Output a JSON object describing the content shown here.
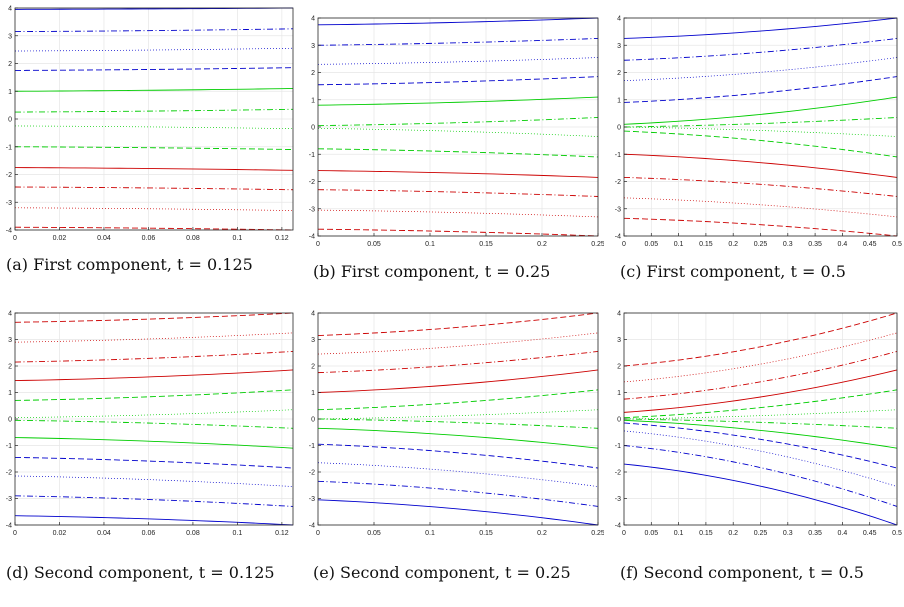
{
  "chart_data": [
    {
      "type": "line",
      "caption": "(a) First component, t = 0.125",
      "t": 0.125,
      "component": "first",
      "xlim": [
        0,
        0.125
      ],
      "ylim": [
        -4,
        4
      ],
      "xticks": [
        "0",
        "0.02",
        "0.04",
        "0.06",
        "0.08",
        "0.1",
        "0.12"
      ],
      "xtick_values": [
        0,
        0.02,
        0.04,
        0.06,
        0.08,
        0.1,
        0.12
      ],
      "yticks": [
        "-4",
        "-3",
        "-2",
        "-1",
        "0",
        "1",
        "2",
        "3",
        "4"
      ],
      "ytick_values": [
        -4,
        -3,
        -2,
        -1,
        0,
        1,
        2,
        3,
        4
      ],
      "grid": true,
      "series": [
        {
          "color": "#0000cc",
          "style": "solid",
          "x": [
            0,
            0.125
          ],
          "y": [
            3.95,
            4.0
          ]
        },
        {
          "color": "#0000cc",
          "style": "dashdot",
          "x": [
            0,
            0.125
          ],
          "y": [
            3.15,
            3.25
          ]
        },
        {
          "color": "#0000cc",
          "style": "dotted",
          "x": [
            0,
            0.125
          ],
          "y": [
            2.45,
            2.55
          ]
        },
        {
          "color": "#0000cc",
          "style": "dashed",
          "x": [
            0,
            0.125
          ],
          "y": [
            1.75,
            1.85
          ]
        },
        {
          "color": "#00cc00",
          "style": "solid",
          "x": [
            0,
            0.125
          ],
          "y": [
            1.0,
            1.1
          ]
        },
        {
          "color": "#00cc00",
          "style": "dashdot",
          "x": [
            0,
            0.125
          ],
          "y": [
            0.25,
            0.35
          ]
        },
        {
          "color": "#00cc00",
          "style": "dotted",
          "x": [
            0,
            0.125
          ],
          "y": [
            -0.25,
            -0.35
          ]
        },
        {
          "color": "#00cc00",
          "style": "dashed",
          "x": [
            0,
            0.125
          ],
          "y": [
            -1.0,
            -1.1
          ]
        },
        {
          "color": "#cc0000",
          "style": "solid",
          "x": [
            0,
            0.125
          ],
          "y": [
            -1.75,
            -1.85
          ]
        },
        {
          "color": "#cc0000",
          "style": "dashdot",
          "x": [
            0,
            0.125
          ],
          "y": [
            -2.45,
            -2.55
          ]
        },
        {
          "color": "#cc0000",
          "style": "dotted",
          "x": [
            0,
            0.125
          ],
          "y": [
            -3.2,
            -3.3
          ]
        },
        {
          "color": "#cc0000",
          "style": "dashed",
          "x": [
            0,
            0.125
          ],
          "y": [
            -3.9,
            -4.0
          ]
        }
      ]
    },
    {
      "type": "line",
      "caption": "(b) First component, t = 0.25",
      "t": 0.25,
      "component": "first",
      "xlim": [
        0,
        0.25
      ],
      "ylim": [
        -4,
        4
      ],
      "xticks": [
        "0",
        "0.05",
        "0.1",
        "0.15",
        "0.2",
        "0.25"
      ],
      "xtick_values": [
        0,
        0.05,
        0.1,
        0.15,
        0.2,
        0.25
      ],
      "yticks": [
        "-4",
        "-3",
        "-2",
        "-1",
        "0",
        "1",
        "2",
        "3",
        "4"
      ],
      "ytick_values": [
        -4,
        -3,
        -2,
        -1,
        0,
        1,
        2,
        3,
        4
      ],
      "grid": true,
      "series": [
        {
          "color": "#0000cc",
          "style": "solid",
          "x": [
            0,
            0.25
          ],
          "y": [
            3.75,
            4.0
          ]
        },
        {
          "color": "#0000cc",
          "style": "dashdot",
          "x": [
            0,
            0.25
          ],
          "y": [
            3.0,
            3.25
          ]
        },
        {
          "color": "#0000cc",
          "style": "dotted",
          "x": [
            0,
            0.25
          ],
          "y": [
            2.3,
            2.55
          ]
        },
        {
          "color": "#0000cc",
          "style": "dashed",
          "x": [
            0,
            0.25
          ],
          "y": [
            1.55,
            1.85
          ]
        },
        {
          "color": "#00cc00",
          "style": "solid",
          "x": [
            0,
            0.25
          ],
          "y": [
            0.8,
            1.1
          ]
        },
        {
          "color": "#00cc00",
          "style": "dashdot",
          "x": [
            0,
            0.25
          ],
          "y": [
            0.05,
            0.35
          ]
        },
        {
          "color": "#00cc00",
          "style": "dotted",
          "x": [
            0,
            0.25
          ],
          "y": [
            -0.05,
            -0.35
          ]
        },
        {
          "color": "#00cc00",
          "style": "dashed",
          "x": [
            0,
            0.25
          ],
          "y": [
            -0.8,
            -1.1
          ]
        },
        {
          "color": "#cc0000",
          "style": "solid",
          "x": [
            0,
            0.25
          ],
          "y": [
            -1.6,
            -1.85
          ]
        },
        {
          "color": "#cc0000",
          "style": "dashdot",
          "x": [
            0,
            0.25
          ],
          "y": [
            -2.3,
            -2.55
          ]
        },
        {
          "color": "#cc0000",
          "style": "dotted",
          "x": [
            0,
            0.25
          ],
          "y": [
            -3.05,
            -3.3
          ]
        },
        {
          "color": "#cc0000",
          "style": "dashed",
          "x": [
            0,
            0.25
          ],
          "y": [
            -3.75,
            -4.0
          ]
        }
      ]
    },
    {
      "type": "line",
      "caption": "(c) First component, t = 0.5",
      "t": 0.5,
      "component": "first",
      "xlim": [
        0,
        0.5
      ],
      "ylim": [
        -4,
        4
      ],
      "xticks": [
        "0",
        "0.05",
        "0.1",
        "0.15",
        "0.2",
        "0.25",
        "0.3",
        "0.35",
        "0.4",
        "0.45",
        "0.5"
      ],
      "xtick_values": [
        0,
        0.05,
        0.1,
        0.15,
        0.2,
        0.25,
        0.3,
        0.35,
        0.4,
        0.45,
        0.5
      ],
      "yticks": [
        "-4",
        "-3",
        "-2",
        "-1",
        "0",
        "1",
        "2",
        "3",
        "4"
      ],
      "ytick_values": [
        -4,
        -3,
        -2,
        -1,
        0,
        1,
        2,
        3,
        4
      ],
      "grid": true,
      "series": [
        {
          "color": "#0000cc",
          "style": "solid",
          "x": [
            0,
            0.5
          ],
          "y": [
            3.25,
            4.0
          ]
        },
        {
          "color": "#0000cc",
          "style": "dashdot",
          "x": [
            0,
            0.5
          ],
          "y": [
            2.45,
            3.25
          ]
        },
        {
          "color": "#0000cc",
          "style": "dotted",
          "x": [
            0,
            0.5
          ],
          "y": [
            1.7,
            2.55
          ]
        },
        {
          "color": "#0000cc",
          "style": "dashed",
          "x": [
            0,
            0.5
          ],
          "y": [
            0.9,
            1.85
          ]
        },
        {
          "color": "#00cc00",
          "style": "solid",
          "x": [
            0,
            0.5
          ],
          "y": [
            0.1,
            1.1
          ]
        },
        {
          "color": "#00cc00",
          "style": "dashdot",
          "x": [
            0,
            0.5
          ],
          "y": [
            0.0,
            0.35
          ]
        },
        {
          "color": "#00cc00",
          "style": "dotted",
          "x": [
            0,
            0.5
          ],
          "y": [
            0.0,
            -0.35
          ]
        },
        {
          "color": "#00cc00",
          "style": "dashed",
          "x": [
            0,
            0.5
          ],
          "y": [
            -0.15,
            -1.1
          ]
        },
        {
          "color": "#cc0000",
          "style": "solid",
          "x": [
            0,
            0.5
          ],
          "y": [
            -1.0,
            -1.85
          ]
        },
        {
          "color": "#cc0000",
          "style": "dashdot",
          "x": [
            0,
            0.5
          ],
          "y": [
            -1.85,
            -2.55
          ]
        },
        {
          "color": "#cc0000",
          "style": "dotted",
          "x": [
            0,
            0.5
          ],
          "y": [
            -2.6,
            -3.3
          ]
        },
        {
          "color": "#cc0000",
          "style": "dashed",
          "x": [
            0,
            0.5
          ],
          "y": [
            -3.35,
            -4.0
          ]
        }
      ]
    },
    {
      "type": "line",
      "caption": "(d) Second component, t = 0.125",
      "t": 0.125,
      "component": "second",
      "xlim": [
        0,
        0.125
      ],
      "ylim": [
        -4,
        4
      ],
      "xticks": [
        "0",
        "0.02",
        "0.04",
        "0.06",
        "0.08",
        "0.1",
        "0.12"
      ],
      "xtick_values": [
        0,
        0.02,
        0.04,
        0.06,
        0.08,
        0.1,
        0.12
      ],
      "yticks": [
        "-4",
        "-3",
        "-2",
        "-1",
        "0",
        "1",
        "2",
        "3",
        "4"
      ],
      "ytick_values": [
        -4,
        -3,
        -2,
        -1,
        0,
        1,
        2,
        3,
        4
      ],
      "grid": true,
      "series": [
        {
          "color": "#cc0000",
          "style": "dashed",
          "x": [
            0,
            0.125
          ],
          "y": [
            3.65,
            4.0
          ]
        },
        {
          "color": "#cc0000",
          "style": "dotted",
          "x": [
            0,
            0.125
          ],
          "y": [
            2.9,
            3.25
          ]
        },
        {
          "color": "#cc0000",
          "style": "dashdot",
          "x": [
            0,
            0.125
          ],
          "y": [
            2.15,
            2.55
          ]
        },
        {
          "color": "#cc0000",
          "style": "solid",
          "x": [
            0,
            0.125
          ],
          "y": [
            1.45,
            1.85
          ]
        },
        {
          "color": "#00cc00",
          "style": "dashed",
          "x": [
            0,
            0.125
          ],
          "y": [
            0.7,
            1.1
          ]
        },
        {
          "color": "#00cc00",
          "style": "dotted",
          "x": [
            0,
            0.125
          ],
          "y": [
            0.05,
            0.35
          ]
        },
        {
          "color": "#00cc00",
          "style": "dashdot",
          "x": [
            0,
            0.125
          ],
          "y": [
            -0.05,
            -0.35
          ]
        },
        {
          "color": "#00cc00",
          "style": "solid",
          "x": [
            0,
            0.125
          ],
          "y": [
            -0.7,
            -1.1
          ]
        },
        {
          "color": "#0000cc",
          "style": "dashed",
          "x": [
            0,
            0.125
          ],
          "y": [
            -1.45,
            -1.85
          ]
        },
        {
          "color": "#0000cc",
          "style": "dotted",
          "x": [
            0,
            0.125
          ],
          "y": [
            -2.15,
            -2.55
          ]
        },
        {
          "color": "#0000cc",
          "style": "dashdot",
          "x": [
            0,
            0.125
          ],
          "y": [
            -2.9,
            -3.3
          ]
        },
        {
          "color": "#0000cc",
          "style": "solid",
          "x": [
            0,
            0.125
          ],
          "y": [
            -3.65,
            -4.0
          ]
        }
      ]
    },
    {
      "type": "line",
      "caption": "(e) Second component, t = 0.25",
      "t": 0.25,
      "component": "second",
      "xlim": [
        0,
        0.25
      ],
      "ylim": [
        -4,
        4
      ],
      "xticks": [
        "0",
        "0.05",
        "0.1",
        "0.15",
        "0.2",
        "0.25"
      ],
      "xtick_values": [
        0,
        0.05,
        0.1,
        0.15,
        0.2,
        0.25
      ],
      "yticks": [
        "-4",
        "-3",
        "-2",
        "-1",
        "0",
        "1",
        "2",
        "3",
        "4"
      ],
      "ytick_values": [
        -4,
        -3,
        -2,
        -1,
        0,
        1,
        2,
        3,
        4
      ],
      "grid": true,
      "series": [
        {
          "color": "#cc0000",
          "style": "dashed",
          "x": [
            0,
            0.25
          ],
          "y": [
            3.15,
            4.0
          ]
        },
        {
          "color": "#cc0000",
          "style": "dotted",
          "x": [
            0,
            0.25
          ],
          "y": [
            2.45,
            3.25
          ]
        },
        {
          "color": "#cc0000",
          "style": "dashdot",
          "x": [
            0,
            0.25
          ],
          "y": [
            1.75,
            2.55
          ]
        },
        {
          "color": "#cc0000",
          "style": "solid",
          "x": [
            0,
            0.25
          ],
          "y": [
            1.0,
            1.85
          ]
        },
        {
          "color": "#00cc00",
          "style": "dashed",
          "x": [
            0,
            0.25
          ],
          "y": [
            0.35,
            1.1
          ]
        },
        {
          "color": "#00cc00",
          "style": "dotted",
          "x": [
            0,
            0.25
          ],
          "y": [
            0.0,
            0.35
          ]
        },
        {
          "color": "#00cc00",
          "style": "dashdot",
          "x": [
            0,
            0.25
          ],
          "y": [
            0.0,
            -0.35
          ]
        },
        {
          "color": "#00cc00",
          "style": "solid",
          "x": [
            0,
            0.25
          ],
          "y": [
            -0.35,
            -1.1
          ]
        },
        {
          "color": "#0000cc",
          "style": "dashed",
          "x": [
            0,
            0.25
          ],
          "y": [
            -0.95,
            -1.85
          ]
        },
        {
          "color": "#0000cc",
          "style": "dotted",
          "x": [
            0,
            0.25
          ],
          "y": [
            -1.65,
            -2.55
          ]
        },
        {
          "color": "#0000cc",
          "style": "dashdot",
          "x": [
            0,
            0.25
          ],
          "y": [
            -2.35,
            -3.3
          ]
        },
        {
          "color": "#0000cc",
          "style": "solid",
          "x": [
            0,
            0.25
          ],
          "y": [
            -3.05,
            -4.0
          ]
        }
      ]
    },
    {
      "type": "line",
      "caption": "(f) Second component, t = 0.5",
      "t": 0.5,
      "component": "second",
      "xlim": [
        0,
        0.5
      ],
      "ylim": [
        -4,
        4
      ],
      "xticks": [
        "0",
        "0.05",
        "0.1",
        "0.15",
        "0.2",
        "0.25",
        "0.3",
        "0.35",
        "0.4",
        "0.45",
        "0.5"
      ],
      "xtick_values": [
        0,
        0.05,
        0.1,
        0.15,
        0.2,
        0.25,
        0.3,
        0.35,
        0.4,
        0.45,
        0.5
      ],
      "yticks": [
        "-4",
        "-3",
        "-2",
        "-1",
        "0",
        "1",
        "2",
        "3",
        "4"
      ],
      "ytick_values": [
        -4,
        -3,
        -2,
        -1,
        0,
        1,
        2,
        3,
        4
      ],
      "grid": true,
      "series": [
        {
          "color": "#cc0000",
          "style": "dashed",
          "x": [
            0,
            0.5
          ],
          "y": [
            2.0,
            4.0
          ]
        },
        {
          "color": "#cc0000",
          "style": "dotted",
          "x": [
            0,
            0.5
          ],
          "y": [
            1.4,
            3.25
          ]
        },
        {
          "color": "#cc0000",
          "style": "dashdot",
          "x": [
            0,
            0.5
          ],
          "y": [
            0.75,
            2.55
          ]
        },
        {
          "color": "#cc0000",
          "style": "solid",
          "x": [
            0,
            0.5
          ],
          "y": [
            0.25,
            1.85
          ]
        },
        {
          "color": "#00cc00",
          "style": "dashed",
          "x": [
            0,
            0.5
          ],
          "y": [
            0.05,
            1.1
          ]
        },
        {
          "color": "#00cc00",
          "style": "dotted",
          "x": [
            0,
            0.5
          ],
          "y": [
            0.0,
            0.35
          ]
        },
        {
          "color": "#00cc00",
          "style": "dashdot",
          "x": [
            0,
            0.5
          ],
          "y": [
            0.0,
            -0.35
          ]
        },
        {
          "color": "#00cc00",
          "style": "solid",
          "x": [
            0,
            0.5
          ],
          "y": [
            -0.05,
            -1.1
          ]
        },
        {
          "color": "#0000cc",
          "style": "dashed",
          "x": [
            0,
            0.5
          ],
          "y": [
            -0.15,
            -1.85
          ]
        },
        {
          "color": "#0000cc",
          "style": "dotted",
          "x": [
            0,
            0.5
          ],
          "y": [
            -0.45,
            -2.55
          ]
        },
        {
          "color": "#0000cc",
          "style": "dashdot",
          "x": [
            0,
            0.5
          ],
          "y": [
            -1.0,
            -3.3
          ]
        },
        {
          "color": "#0000cc",
          "style": "solid",
          "x": [
            0,
            0.5
          ],
          "y": [
            -1.7,
            -4.0
          ]
        }
      ]
    }
  ]
}
